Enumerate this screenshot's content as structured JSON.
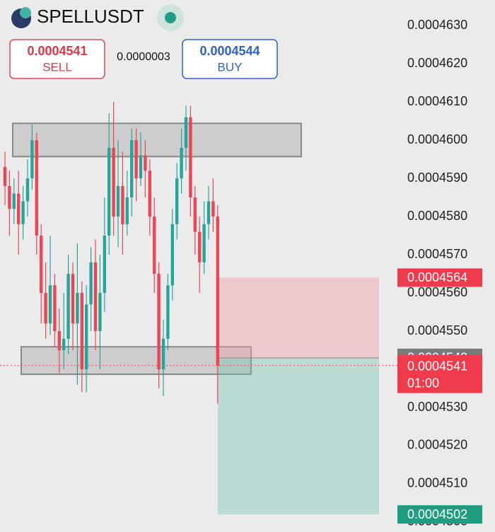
{
  "chart_data": {
    "type": "candlestick",
    "header": {
      "symbol": "SPELLUSDT",
      "sell_price": "0.0004541",
      "sell_label": "SELL",
      "spread": "0.0000003",
      "buy_price": "0.0004544",
      "buy_label": "BUY"
    },
    "ylim": [
      0.00044974,
      0.00046367
    ],
    "yticks": [
      {
        "value": 0.000463,
        "label": "0.0004630"
      },
      {
        "value": 0.000462,
        "label": "0.0004620"
      },
      {
        "value": 0.000461,
        "label": "0.0004610"
      },
      {
        "value": 0.00046,
        "label": "0.0004600"
      },
      {
        "value": 0.000459,
        "label": "0.0004590"
      },
      {
        "value": 0.000458,
        "label": "0.0004580"
      },
      {
        "value": 0.000457,
        "label": "0.0004570"
      },
      {
        "value": 0.000456,
        "label": "0.0004560"
      },
      {
        "value": 0.000455,
        "label": "0.0004550"
      },
      {
        "value": 0.000454,
        "label": "0.0004540"
      },
      {
        "value": 0.000453,
        "label": "0.0004530"
      },
      {
        "value": 0.000452,
        "label": "0.0004520"
      },
      {
        "value": 0.000451,
        "label": "0.0004510"
      },
      {
        "value": 0.00045,
        "label": "0.0004500"
      }
    ],
    "up_color": "#26a69a",
    "down_color": "#ef4454",
    "open": [
      0.0004593,
      0.0004588,
      0.0004582,
      0.0004586,
      0.0004578,
      0.0004584,
      0.000459,
      0.00046,
      0.0004575,
      0.000456,
      0.0004552,
      0.0004562,
      0.000455,
      0.0004545,
      0.0004548,
      0.0004565,
      0.0004552,
      0.000456,
      0.000454,
      0.0004557,
      0.0004568,
      0.000455,
      0.000456,
      0.0004575,
      0.0004598,
      0.000458,
      0.0004588,
      0.0004578,
      0.0004585,
      0.00046,
      0.000459,
      0.0004596,
      0.0004592,
      0.000458,
      0.0004565,
      0.000454,
      0.0004548,
      0.0004562,
      0.0004578,
      0.000459,
      0.0004598,
      0.0004606,
      0.0004585,
      0.0004576,
      0.0004568,
      0.0004578,
      0.0004584,
      0.000458
    ],
    "high": [
      0.0004597,
      0.0004592,
      0.000459,
      0.0004592,
      0.0004588,
      0.0004595,
      0.0004604,
      0.0004602,
      0.0004578,
      0.0004568,
      0.0004575,
      0.0004565,
      0.0004556,
      0.000456,
      0.000457,
      0.0004568,
      0.0004573,
      0.0004563,
      0.0004562,
      0.0004572,
      0.0004574,
      0.000457,
      0.0004585,
      0.0004607,
      0.000461,
      0.00046,
      0.0004597,
      0.0004592,
      0.0004603,
      0.0004603,
      0.0004602,
      0.00046,
      0.0004595,
      0.0004585,
      0.0004568,
      0.0004553,
      0.0004565,
      0.0004582,
      0.0004594,
      0.0004603,
      0.0004609,
      0.0004609,
      0.0004588,
      0.000458,
      0.0004584,
      0.0004588,
      0.000459,
      0.0004583
    ],
    "low": [
      0.0004583,
      0.0004575,
      0.0004578,
      0.000457,
      0.0004574,
      0.000458,
      0.0004587,
      0.000457,
      0.0004552,
      0.0004548,
      0.0004549,
      0.0004546,
      0.0004539,
      0.000454,
      0.0004544,
      0.0004545,
      0.0004536,
      0.0004534,
      0.0004534,
      0.000455,
      0.0004545,
      0.000454,
      0.0004555,
      0.000457,
      0.0004575,
      0.0004572,
      0.000457,
      0.0004575,
      0.000458,
      0.0004584,
      0.0004588,
      0.0004585,
      0.0004575,
      0.000456,
      0.0004535,
      0.0004533,
      0.0004545,
      0.0004558,
      0.0004574,
      0.0004586,
      0.0004592,
      0.000458,
      0.000457,
      0.000456,
      0.0004565,
      0.0004574,
      0.0004576,
      0.0004531
    ],
    "close": [
      0.0004588,
      0.0004582,
      0.0004586,
      0.0004578,
      0.0004584,
      0.000459,
      0.00046,
      0.0004575,
      0.000456,
      0.0004552,
      0.0004562,
      0.000455,
      0.0004545,
      0.0004548,
      0.0004565,
      0.0004552,
      0.000456,
      0.000454,
      0.0004557,
      0.0004568,
      0.000455,
      0.000456,
      0.0004575,
      0.0004598,
      0.000458,
      0.0004588,
      0.0004578,
      0.0004585,
      0.00046,
      0.000459,
      0.0004596,
      0.0004592,
      0.000458,
      0.0004565,
      0.000454,
      0.0004548,
      0.0004562,
      0.0004578,
      0.000459,
      0.0004598,
      0.0004606,
      0.0004585,
      0.0004576,
      0.0004568,
      0.0004578,
      0.0004584,
      0.000458,
      0.0004541
    ],
    "zones": [
      {
        "top": 0.00046044,
        "bottom": 0.00045957
      },
      {
        "top": 0.00045459,
        "bottom": 0.00045387
      }
    ],
    "position": {
      "stop": 0.0004564,
      "entry": 0.0004543,
      "target": 0.0004502
    },
    "last_price": 0.0004541,
    "countdown": "01:00"
  }
}
